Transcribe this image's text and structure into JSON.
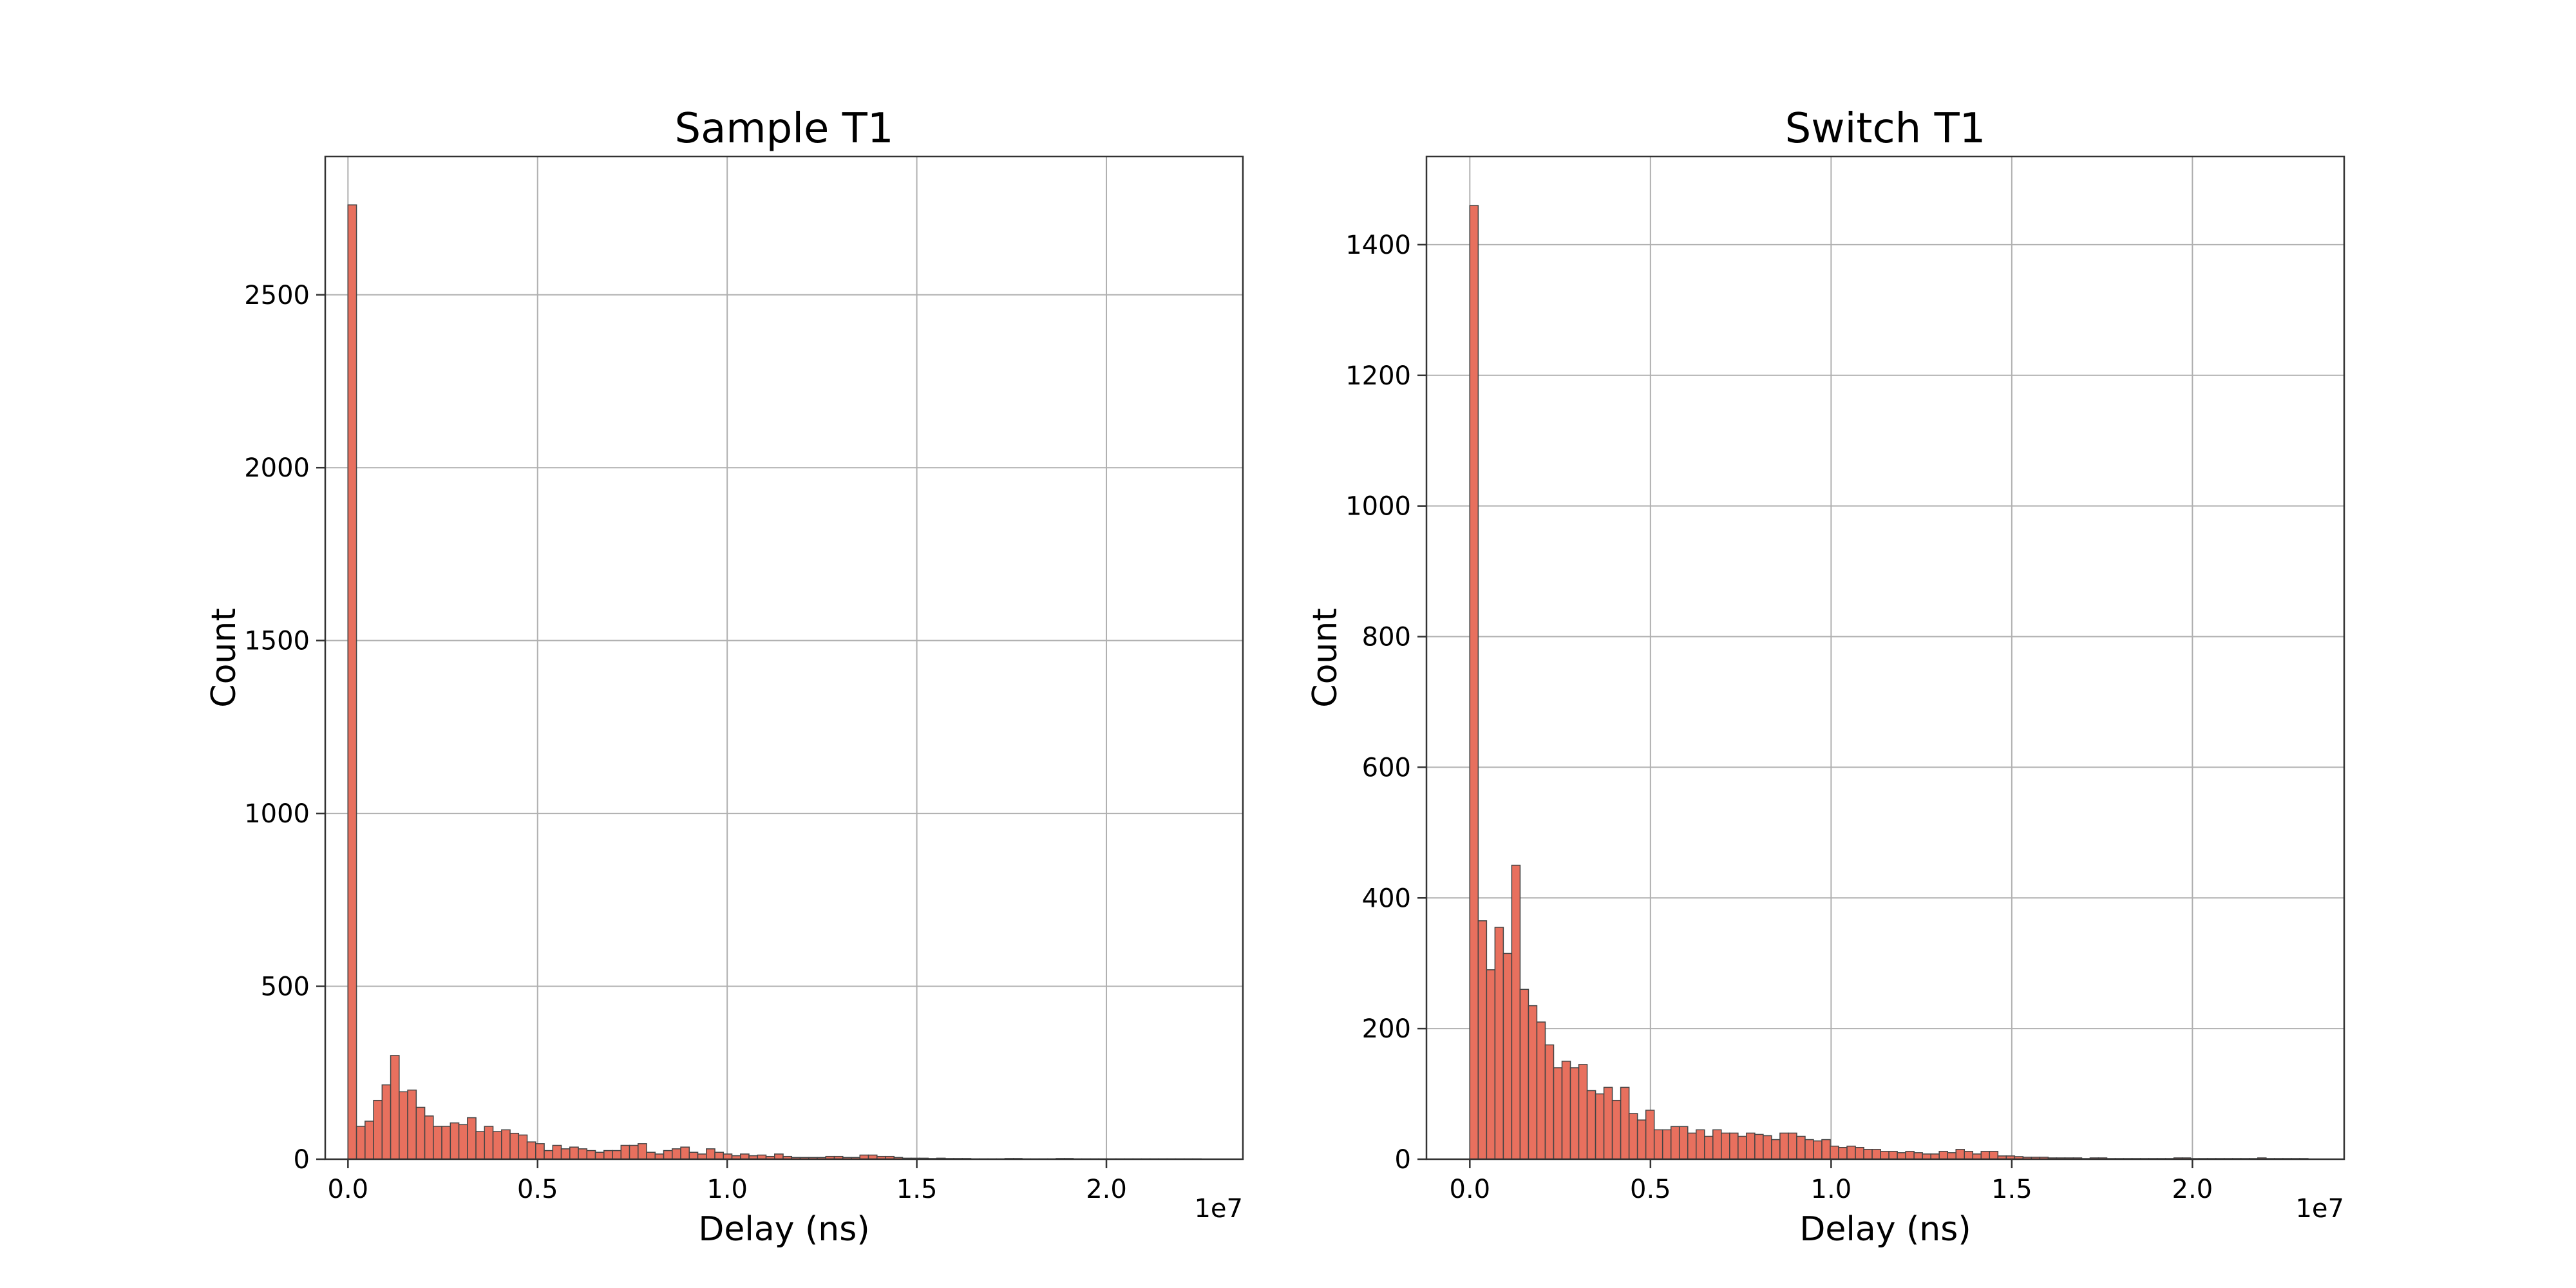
{
  "chart_data": [
    {
      "type": "bar",
      "subtype": "histogram",
      "title": "Sample T1",
      "xlabel": "Delay (ns)",
      "ylabel": "Count",
      "x_offset_label": "1e7",
      "xlim": [
        -0.06,
        2.36
      ],
      "ylim": [
        0,
        2900
      ],
      "xticks": [
        0.0,
        0.5,
        1.0,
        1.5,
        2.0
      ],
      "xtick_labels": [
        "0.0",
        "0.5",
        "1.0",
        "1.5",
        "2.0"
      ],
      "yticks": [
        0,
        500,
        1000,
        1500,
        2000,
        2500
      ],
      "ytick_labels": [
        "0",
        "500",
        "1000",
        "1500",
        "2000",
        "2500"
      ],
      "grid": true,
      "bar_color": "#E8705E",
      "bin_start": 0.0,
      "bin_width": 0.0225,
      "counts": [
        2760,
        95,
        110,
        170,
        215,
        300,
        195,
        200,
        150,
        125,
        95,
        95,
        105,
        100,
        120,
        80,
        95,
        80,
        85,
        75,
        70,
        50,
        45,
        25,
        40,
        30,
        35,
        30,
        25,
        20,
        25,
        25,
        40,
        40,
        45,
        20,
        15,
        25,
        30,
        35,
        20,
        15,
        30,
        20,
        15,
        10,
        15,
        10,
        12,
        8,
        15,
        8,
        5,
        5,
        5,
        5,
        8,
        8,
        5,
        5,
        12,
        12,
        8,
        8,
        5,
        3,
        3,
        3,
        2,
        3,
        2,
        2,
        2,
        1,
        1,
        1,
        1,
        2,
        2,
        1,
        1,
        1,
        1,
        2,
        2,
        1,
        1,
        1,
        1,
        1,
        1,
        1,
        1,
        1,
        1,
        1,
        1,
        1,
        1,
        1
      ]
    },
    {
      "type": "bar",
      "subtype": "histogram",
      "title": "Switch T1",
      "xlabel": "Delay (ns)",
      "ylabel": "Count",
      "x_offset_label": "1e7",
      "xlim": [
        -0.12,
        2.42
      ],
      "ylim": [
        0,
        1535
      ],
      "xticks": [
        0.0,
        0.5,
        1.0,
        1.5,
        2.0
      ],
      "xtick_labels": [
        "0.0",
        "0.5",
        "1.0",
        "1.5",
        "2.0"
      ],
      "yticks": [
        0,
        200,
        400,
        600,
        800,
        1000,
        1200,
        1400
      ],
      "ytick_labels": [
        "0",
        "200",
        "400",
        "600",
        "800",
        "1000",
        "1200",
        "1400"
      ],
      "grid": true,
      "bar_color": "#E8705E",
      "bin_start": 0.0,
      "bin_width": 0.0232,
      "counts": [
        1460,
        365,
        290,
        355,
        315,
        450,
        260,
        235,
        210,
        175,
        140,
        150,
        140,
        145,
        105,
        100,
        110,
        90,
        110,
        70,
        60,
        75,
        45,
        45,
        50,
        50,
        40,
        45,
        35,
        45,
        40,
        40,
        35,
        40,
        38,
        36,
        30,
        40,
        40,
        35,
        30,
        28,
        30,
        20,
        18,
        20,
        18,
        15,
        15,
        12,
        12,
        10,
        12,
        10,
        8,
        8,
        12,
        10,
        15,
        12,
        8,
        12,
        12,
        5,
        5,
        4,
        3,
        3,
        3,
        2,
        2,
        2,
        2,
        1,
        2,
        2,
        1,
        1,
        1,
        1,
        1,
        1,
        1,
        1,
        2,
        2,
        1,
        1,
        1,
        1,
        1,
        1,
        1,
        1,
        2,
        1,
        1,
        1,
        1,
        1
      ]
    }
  ]
}
